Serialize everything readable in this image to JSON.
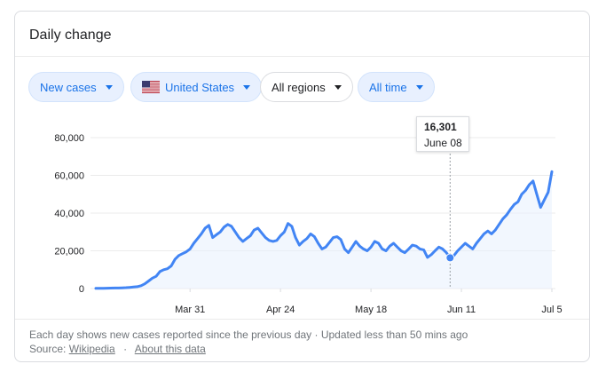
{
  "card": {
    "title": "Daily change"
  },
  "filters": {
    "metric": "New cases",
    "country": "United States",
    "region": "All regions",
    "period": "All time"
  },
  "tooltip": {
    "value": "16,301",
    "date": "June 08"
  },
  "footer": {
    "note": "Each day shows new cases reported since the previous day · Updated less than 50 mins ago",
    "source_label": "Source:",
    "source_link": "Wikipedia",
    "about_link": "About this data"
  },
  "colors": {
    "line": "#4285f4",
    "accent": "#1a73e8",
    "area": "#e8f0fe"
  },
  "chart_data": {
    "type": "area",
    "ylim": [
      0,
      80000
    ],
    "yticks": [
      0,
      20000,
      40000,
      60000,
      80000
    ],
    "ytick_labels": [
      "0",
      "20,000",
      "40,000",
      "60,000",
      "80,000"
    ],
    "xtick_labels": [
      "Mar 31",
      "Apr 24",
      "May 18",
      "Jun 11",
      "Jul 5"
    ],
    "xtick_index": [
      25,
      49,
      73,
      97,
      121
    ],
    "highlight_index": 94,
    "values": [
      100,
      120,
      150,
      200,
      250,
      280,
      300,
      380,
      450,
      600,
      800,
      1000,
      1500,
      2500,
      4000,
      5500,
      6500,
      9000,
      10000,
      10500,
      12000,
      15500,
      17500,
      18500,
      19500,
      21000,
      24000,
      26500,
      29000,
      32000,
      33500,
      27000,
      28500,
      30000,
      32500,
      34000,
      33000,
      30000,
      27000,
      25000,
      26500,
      28000,
      31000,
      32000,
      29500,
      27000,
      25500,
      25000,
      25500,
      28000,
      30000,
      34500,
      33000,
      27000,
      23000,
      25000,
      26500,
      29000,
      27500,
      24000,
      21000,
      22000,
      24500,
      27000,
      27500,
      26000,
      21000,
      19000,
      22000,
      25000,
      22500,
      21000,
      20000,
      22000,
      25000,
      24000,
      21000,
      20000,
      22500,
      24000,
      22000,
      20000,
      19000,
      21000,
      23000,
      22500,
      21000,
      20500,
      16500,
      18000,
      20000,
      22000,
      21000,
      19000,
      16301,
      17500,
      20000,
      22000,
      24000,
      22500,
      21000,
      24000,
      26500,
      29000,
      30500,
      29000,
      31000,
      34000,
      37000,
      39000,
      42000,
      44500,
      46000,
      50000,
      52000,
      55000,
      57000,
      50000,
      43000,
      47000,
      51000,
      62000
    ]
  }
}
